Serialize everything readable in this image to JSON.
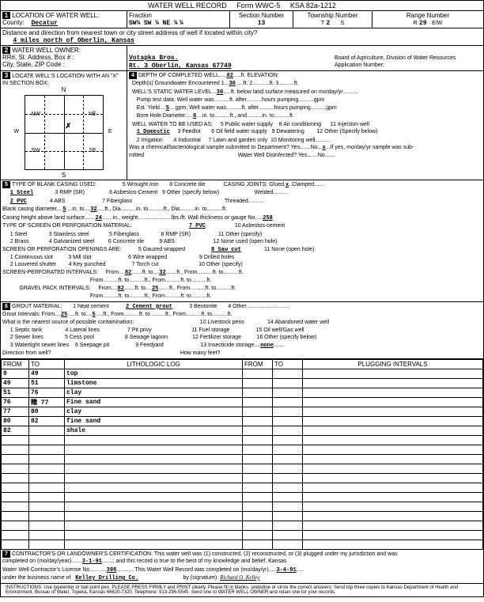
{
  "form": {
    "title": "WATER WELL RECORD",
    "formNo": "Form WWC-5",
    "ksa": "KSA 82a-1212"
  },
  "sec1": {
    "label": "LOCATION OF WATER WELL:",
    "countyLbl": "County:",
    "county": "Decatur",
    "fractionLbl": "Fraction",
    "frac": [
      "SW¼",
      "SW ¼",
      "NE ¼",
      " ¼"
    ],
    "secLbl": "Section Number",
    "secNo": "13",
    "twpLbl": "Township Number",
    "twp": "2",
    "twpDir": "S",
    "twpT": "T",
    "rngLbl": "Range Number",
    "rng": "29",
    "rngR": "R",
    "ew": "E/W",
    "distLbl": "Distance and direction from nearest town or city street address of well if located within city?",
    "dist": "4 miles north of Oberlin, Kansas"
  },
  "sec2": {
    "label": "WATER WELL OWNER:",
    "rrLbl": "RR#, St. Address, Box # :",
    "cityLbl": "City, State, ZIP Code :",
    "name": "Votapka Bros.",
    "addr": "Rt. 3 Oberlin, Kansas 67749",
    "boardLbl": "Board of Agriculture, Division of Water Resources",
    "appLbl": "Application Number:"
  },
  "sec3": {
    "label": "LOCATE WELL'S LOCATION WITH AN \"X\" IN SECTION BOX:",
    "N": "N",
    "S": "S",
    "E": "E",
    "W": "W",
    "NW": "NW",
    "NE": "NE",
    "SW": "SW",
    "SE": "SE",
    "mile": "1 Mile"
  },
  "sec4": {
    "depthLbl": "DEPTH OF COMPLETED WELL",
    "depth": "82",
    "ftElev": "ft. ELEVATION:",
    "depthsLbl": "Depth(s) Groundwater Encountered  1.",
    "d1": "30",
    "ft2": "ft. 2.",
    "ft3": "ft. 3",
    "ftEnd": "ft.",
    "swlLbl": "WELL'S STATIC WATER LEVEL",
    "swl": "30",
    "swlSuffix": "ft. below land surface measured on mo/day/yr",
    "pumpLbl": "Pump test data:   Well water was",
    "pumpAfter": "ft. after",
    "pumpHrs": "hours pumping",
    "gpm": "gpm",
    "estLbl": "Est. Yield",
    "estYield": "5",
    "estGpm": "gpm;  Well water was",
    "boreLbl": "Bore Hole Diameter:",
    "bore": "8",
    "boreIn": "in. to",
    "boreFt": "ft., and",
    "boreIn2": "in. to",
    "boreFt2": "ft.",
    "useLbl": "WELL WATER TO BE USED AS:",
    "uses": [
      "1 Domestic",
      "2 Irrigation",
      "3 Feedlot",
      "4 Industrial",
      "5 Public water supply",
      "6 Oil field water supply",
      "7 Lawn and garden only",
      "8 Air conditioning",
      "9 Dewatering",
      "10 Monitoring well",
      "11 Injection well",
      "12 Other (Specify below)"
    ],
    "use1": "1 Domestic",
    "chemLbl": "Was a chemical/bacteriological sample submitted to Department?  Yes",
    "no": "No",
    "x": "x",
    "ifyes": "If yes, mo/day/yr sample was sub-",
    "mitted": "mitted",
    "disinfect": "Water Well Disinfected?  Yes",
    "no2": "No"
  },
  "sec5": {
    "label": "TYPE OF BLANK CASING USED:",
    "items": [
      "1 Steel",
      "2 PVC",
      "3 RMP (SR)",
      "4 ABS",
      "5 Wrought iron",
      "6 Asbestos-Cement",
      "7 Fiberglass",
      "8 Concrete tile",
      "9 Other (specify below)"
    ],
    "sel1": "1 Steel",
    "sel2": "2 PVC",
    "jointsLbl": "CASING JOINTS: Glued",
    "jX": "x",
    "clamped": "Clamped",
    "welded": "Welded",
    "threaded": "Threaded",
    "bcdLbl": "Blank casing diameter",
    "bcd": "5",
    "bcdIn": "in. to",
    "bcdTo": "32",
    "bcdFt": "ft., Dia",
    "bcdIn2": "in. to",
    "bcdFt3": "ft., Dia",
    "in3": "in. to",
    "ft4": "ft.",
    "chLbl": "Casing height above land surface",
    "ch": "24",
    "chIn": "in., weight",
    "lbs": "lbs./ft. Wall thickness or gauge No.",
    "gauge": "258",
    "screenLbl": "TYPE OF SCREEN OR PERFORATION MATERIAL:",
    "screenItems": [
      "1 Steel",
      "2 Brass",
      "3 Stainless steel",
      "4 Galvanized steel",
      "5 Fiberglass",
      "6 Concrete tile",
      "7 PVC",
      "8 RMP (SR)",
      "9 ABS",
      "10 Asbestos-cement",
      "11 Other (specify)",
      "12 None used (open hole)"
    ],
    "screenSel": "7 PVC",
    "openLbl": "SCREEN OR PERFORATION OPENINGS ARE:",
    "openItems": [
      "1 Continuous slot",
      "2 Louvered shutter",
      "3 Mill slot",
      "4 Key punched",
      "5 Gauzed wrapped",
      "6 Wire wrapped",
      "7 Torch cut",
      "8 Saw cut",
      "9 Drilled holes",
      "10 Other (specify)",
      "11 None (open hole)"
    ],
    "openSel": "8 Saw cut",
    "spiLbl": "SCREEN-PERFORATED INTERVALS:",
    "from": "From",
    "to": "ft. to",
    "spi1": "82",
    "spi2": "32",
    "from2": "ft., From",
    "to2": "ft. to",
    "ft": "ft.",
    "gpiLbl": "GRAVEL PACK INTERVALS:",
    "gpi1": "82",
    "gpi2": "25"
  },
  "sec6": {
    "label": "GROUT MATERIAL:",
    "items": [
      "1 Neat cement",
      "2 Cement grout",
      "3 Bentonite",
      "4 Other"
    ],
    "sel": "2 Cement grout",
    "giLbl": "Grout Intervals:   From",
    "gi1": "25",
    "gi2": "5",
    "contamLbl": "What is the nearest source of possible contamination:",
    "contamItems": [
      "1 Septic tank",
      "2 Sewer lines",
      "3 Watertight sewer lines",
      "4 Lateral lines",
      "5 Cess pool",
      "6 Seepage pit",
      "7 Pit privy",
      "8 Sewage lagoon",
      "9 Feedyard",
      "10 Livestock pens",
      "11 Fuel storage",
      "12 Fertilizer storage",
      "13 Insecticide storage",
      "14 Abandoned water well",
      "15 Oil well/Gas well",
      "16 Other (specify below)"
    ],
    "none": "none",
    "dirLbl": "Direction from well?",
    "howMany": "How many feet?"
  },
  "lith": {
    "hdrs": [
      "FROM",
      "TO",
      "LITHOLOGIC LOG",
      "FROM",
      "TO",
      "PLUGGING INTERVALS"
    ],
    "rows": [
      [
        "0",
        "49",
        "top",
        "",
        "",
        ""
      ],
      [
        "49",
        "51",
        "limstone",
        "",
        "",
        ""
      ],
      [
        "51",
        "76",
        "clay",
        "",
        "",
        ""
      ],
      [
        "76",
        "糟 77",
        "Fine sand",
        "",
        "",
        ""
      ],
      [
        "77",
        "80",
        "clay",
        "",
        "",
        ""
      ],
      [
        "80",
        "82",
        "fine sand",
        "",
        "",
        ""
      ],
      [
        "82",
        "",
        "shale",
        "",
        "",
        ""
      ]
    ],
    "blankRows": 12
  },
  "sec7": {
    "certLbl": "CONTRACTOR'S OR LANDOWNER'S CERTIFICATION: This water well was (1) constructed, (2) reconstructed, or (3) plugged under my jurisdiction and was",
    "compLbl": "completed on (mo/day/year)",
    "compDate": "3-1-91",
    "trueLbl": "; and this record is true to the best of my knowledge and belief. Kansas",
    "licLbl": "Water Well Contractor's License No.",
    "licNo": "398",
    "recLbl": ". This Water Well Record was completed on (mo/day/yr)",
    "recDate": "3-4-91",
    "busLbl": "under the business name of",
    "busName": "Kelley Drilling Co.",
    "sigLbl": "by (signature)",
    "sig": "Richard O. Kelley",
    "instr": "INSTRUCTIONS: Use typewriter or ball point pen. PLEASE PRESS FIRMLY and PRINT clearly. Please fill in blanks, underline or circle the correct answers. Send top three copies to Kansas Department of Health and Environment, Bureau of Water, Topeka, Kansas 66620-7320. Telephone: 913-296-5545. Send one to WATER WELL OWNER and retain one for your records."
  }
}
